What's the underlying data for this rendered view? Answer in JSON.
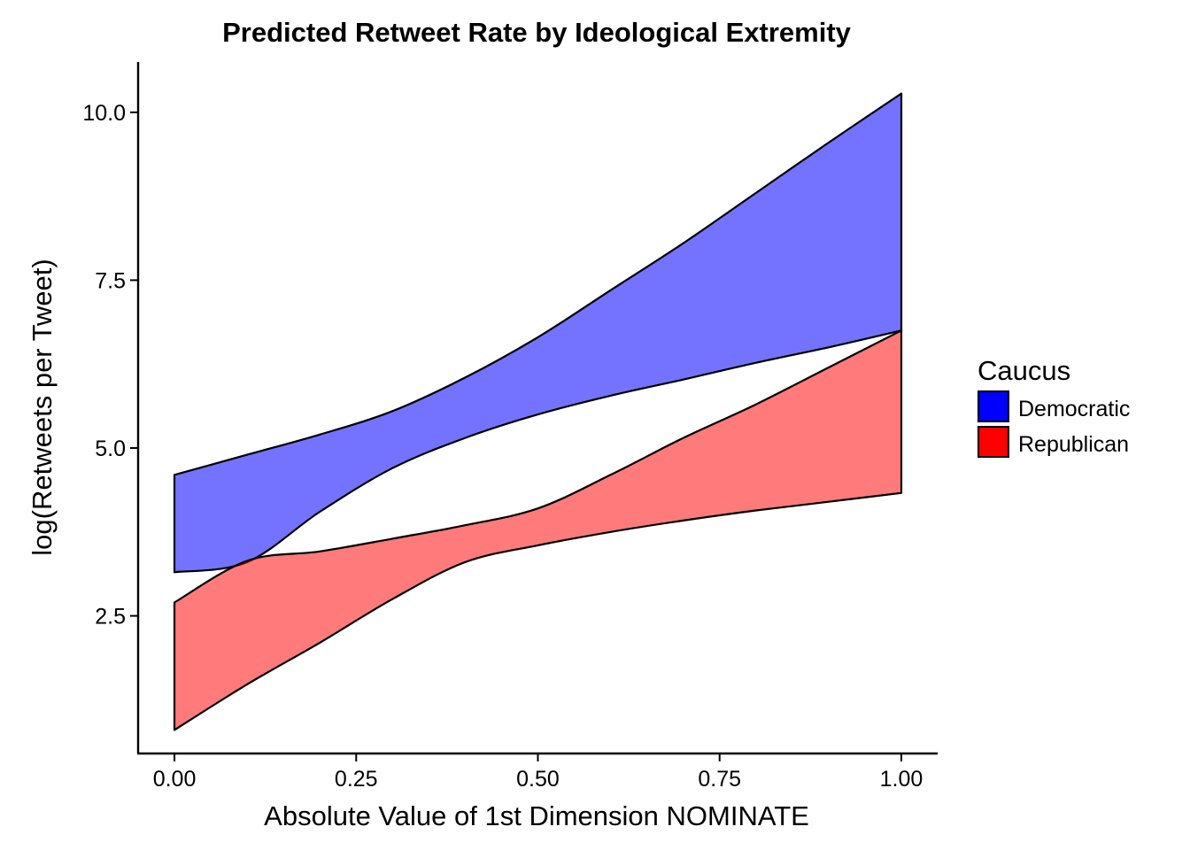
{
  "chart_data": {
    "type": "area",
    "title": "Predicted Retweet Rate by Ideological Extremity",
    "xlabel": "Absolute Value of 1st Dimension NOMINATE",
    "ylabel": "log(Retweets per Tweet)",
    "xlim": [
      -0.05,
      1.05
    ],
    "ylim": [
      0.45,
      10.75
    ],
    "x_ticks": [
      0.0,
      0.25,
      0.5,
      0.75,
      1.0
    ],
    "x_tick_labels": [
      "0.00",
      "0.25",
      "0.50",
      "0.75",
      "1.00"
    ],
    "y_ticks": [
      2.5,
      5.0,
      7.5,
      10.0
    ],
    "y_tick_labels": [
      "2.5",
      "5.0",
      "7.5",
      "10.0"
    ],
    "grid": false,
    "legend": {
      "title": "Caucus",
      "placement": "right",
      "entries": [
        "Democratic",
        "Republican"
      ]
    },
    "x": [
      0.0,
      0.1,
      0.2,
      0.3,
      0.4,
      0.5,
      0.6,
      0.7,
      0.8,
      0.9,
      1.0
    ],
    "series": [
      {
        "name": "Democratic",
        "color": "#0000ff",
        "fill_opacity": 0.55,
        "lower": [
          3.15,
          3.3,
          4.05,
          4.7,
          5.15,
          5.5,
          5.78,
          6.02,
          6.27,
          6.5,
          6.75
        ],
        "upper": [
          4.6,
          4.9,
          5.2,
          5.55,
          6.05,
          6.65,
          7.35,
          8.05,
          8.8,
          9.55,
          10.28
        ]
      },
      {
        "name": "Republican",
        "color": "#ff0000",
        "fill_opacity": 0.52,
        "lower": [
          0.8,
          1.48,
          2.1,
          2.75,
          3.3,
          3.55,
          3.75,
          3.92,
          4.07,
          4.2,
          4.33
        ],
        "upper": [
          2.7,
          3.32,
          3.46,
          3.65,
          3.85,
          4.1,
          4.6,
          5.15,
          5.65,
          6.2,
          6.75
        ]
      }
    ]
  }
}
